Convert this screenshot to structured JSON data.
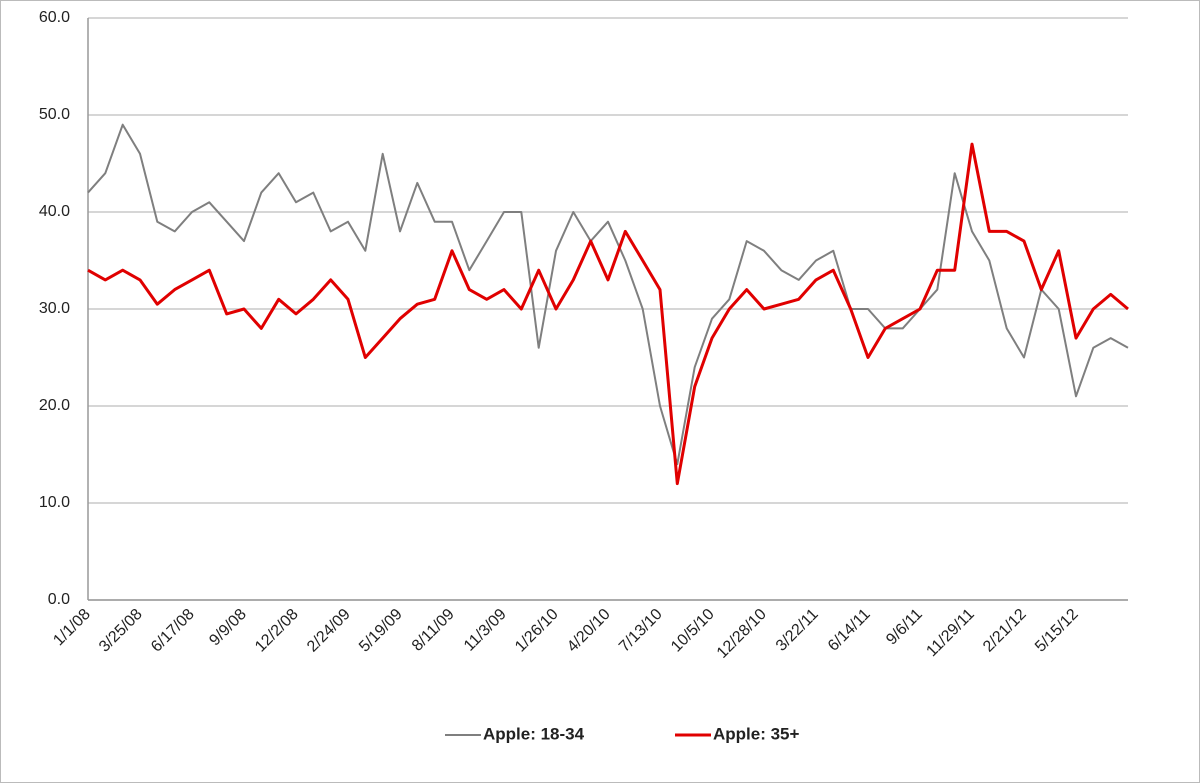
{
  "chart_data": {
    "type": "line",
    "categories": [
      "1/1/08",
      null,
      null,
      "3/25/08",
      null,
      null,
      "6/17/08",
      null,
      null,
      "9/9/08",
      null,
      null,
      "12/2/08",
      null,
      null,
      "2/24/09",
      null,
      null,
      "5/19/09",
      null,
      null,
      "8/11/09",
      null,
      null,
      "11/3/09",
      null,
      null,
      "1/26/10",
      null,
      null,
      "4/20/10",
      null,
      null,
      "7/13/10",
      null,
      null,
      "10/5/10",
      null,
      null,
      "12/28/10",
      null,
      null,
      "3/22/11",
      null,
      null,
      "6/14/11",
      null,
      null,
      "9/6/11",
      null,
      null,
      "11/29/11",
      null,
      null,
      "2/21/12",
      null,
      null,
      "5/15/12",
      null,
      null,
      null
    ],
    "series": [
      {
        "name": "Apple: 18-34",
        "color": "#7f7f7f",
        "values": [
          42,
          44,
          49,
          46,
          39,
          38,
          40,
          41,
          39,
          37,
          42,
          44,
          41,
          42,
          38,
          39,
          36,
          46,
          38,
          43,
          39,
          39,
          34,
          37,
          40,
          40,
          26,
          36,
          40,
          37,
          39,
          35,
          30,
          20,
          14,
          24,
          29,
          31,
          37,
          36,
          34,
          33,
          35,
          36,
          30,
          30,
          28,
          28,
          30,
          32,
          44,
          38,
          35,
          28,
          25,
          32,
          30,
          21,
          26,
          27,
          26
        ]
      },
      {
        "name": "Apple: 35+",
        "color": "#e00000",
        "values": [
          34,
          33,
          34,
          33,
          30.5,
          32,
          33,
          34,
          29.5,
          30,
          28,
          31,
          29.5,
          31,
          33,
          31,
          25,
          27,
          29,
          30.5,
          31,
          36,
          32,
          31,
          32,
          30,
          34,
          30,
          33,
          37,
          33,
          38,
          35,
          32,
          12,
          22,
          27,
          30,
          32,
          30,
          30.5,
          31,
          33,
          34,
          30,
          25,
          28,
          29,
          30,
          34,
          34,
          47,
          38,
          38,
          37,
          32,
          36,
          27,
          30,
          31.5,
          30
        ]
      }
    ],
    "ylim": [
      0,
      60
    ],
    "yticks": [
      {
        "value": 0,
        "label": "0.0"
      },
      {
        "value": 10,
        "label": "10.0"
      },
      {
        "value": 20,
        "label": "20.0"
      },
      {
        "value": 30,
        "label": "30.0"
      },
      {
        "value": 40,
        "label": "40.0"
      },
      {
        "value": 50,
        "label": "50.0"
      },
      {
        "value": 60,
        "label": "60.0"
      }
    ],
    "grid": true,
    "legend": "bottom"
  }
}
